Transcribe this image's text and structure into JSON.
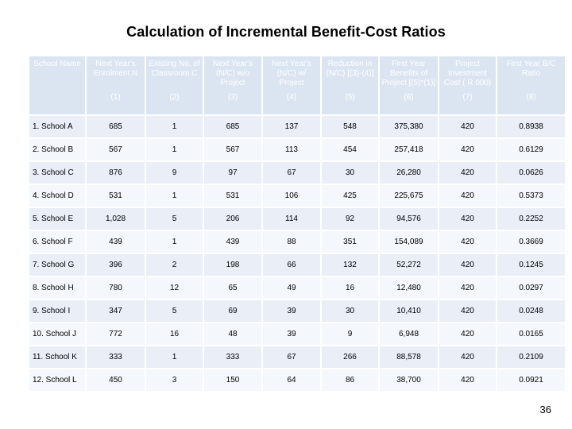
{
  "title": "Calculation of Incremental Benefit-Cost Ratios",
  "columns": [
    {
      "label": "School Name",
      "number": ""
    },
    {
      "label": "Next Year's Enrolment N",
      "number": "(1)"
    },
    {
      "label": "Existing No. of Classroom C",
      "number": "(2)"
    },
    {
      "label": "Next Year's (N/C) w/o Project",
      "number": "(3)"
    },
    {
      "label": "Next Year's (N/C) w/ Project",
      "number": "(4)"
    },
    {
      "label": "Reduction in (N/C) [(3)-(4)]",
      "number": "(5)"
    },
    {
      "label": "First Year Benefits of Project [(5)*(1)]",
      "number": "(6)"
    },
    {
      "label": "Project Investment Cost ( R 000)",
      "number": "(7)"
    },
    {
      "label": "First Year B/C Ratio",
      "number": "(8)"
    }
  ],
  "rows": [
    [
      "1. School A",
      "685",
      "1",
      "685",
      "137",
      "548",
      "375,380",
      "420",
      "0.8938"
    ],
    [
      "2. School B",
      "567",
      "1",
      "567",
      "113",
      "454",
      "257,418",
      "420",
      "0.6129"
    ],
    [
      "3. School C",
      "876",
      "9",
      "97",
      "67",
      "30",
      "26,280",
      "420",
      "0.0626"
    ],
    [
      "4. School D",
      "531",
      "1",
      "531",
      "106",
      "425",
      "225,675",
      "420",
      "0.5373"
    ],
    [
      "5. School E",
      "1,028",
      "5",
      "206",
      "114",
      "92",
      "94,576",
      "420",
      "0.2252"
    ],
    [
      "6. School F",
      "439",
      "1",
      "439",
      "88",
      "351",
      "154,089",
      "420",
      "0.3669"
    ],
    [
      "7. School G",
      "396",
      "2",
      "198",
      "66",
      "132",
      "52,272",
      "420",
      "0.1245"
    ],
    [
      "8. School H",
      "780",
      "12",
      "65",
      "49",
      "16",
      "12,480",
      "420",
      "0.0297"
    ],
    [
      "9. School I",
      "347",
      "5",
      "69",
      "39",
      "30",
      "10,410",
      "420",
      "0.0248"
    ],
    [
      "10. School J",
      "772",
      "16",
      "48",
      "39",
      "9",
      "6,948",
      "420",
      "0.0165"
    ],
    [
      "11. School K",
      "333",
      "1",
      "333",
      "67",
      "266",
      "88,578",
      "420",
      "0.2109"
    ],
    [
      "12. School L",
      "450",
      "3",
      "150",
      "64",
      "86",
      "38,700",
      "420",
      "0.0921"
    ]
  ],
  "page_number": "36",
  "colors": {
    "header_fill": "#dbe5f1",
    "row_fill_a": "#e9eef7",
    "row_fill_b": "#f4f7fb"
  }
}
